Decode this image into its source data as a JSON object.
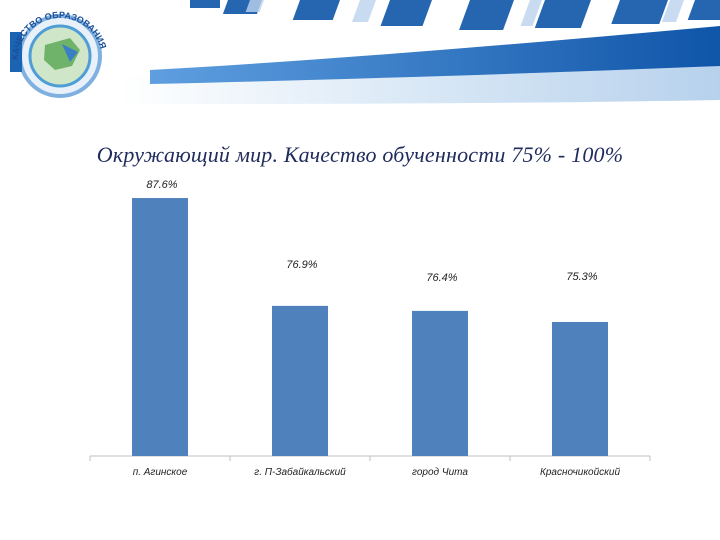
{
  "colors": {
    "bar": "#4f81bd",
    "header_blue": "#1b63b3",
    "header_light": "#c7dcf1",
    "title": "#1f2c5c"
  },
  "logo": {
    "text": "КАЧЕСТВО ОБРАЗОВАНИЯ"
  },
  "chart_data": {
    "type": "bar",
    "title": "Окружающий мир. Качество обученности 75% - 100%",
    "categories": [
      "п. Агинское",
      "г. П-Забайкальский",
      "город Чита",
      "Красночикойский"
    ],
    "values": [
      87.6,
      76.9,
      76.4,
      75.3
    ],
    "data_labels": [
      "87.6%",
      "76.9%",
      "76.4%",
      "75.3%"
    ],
    "xlabel": "",
    "ylabel": "",
    "grid": false
  }
}
